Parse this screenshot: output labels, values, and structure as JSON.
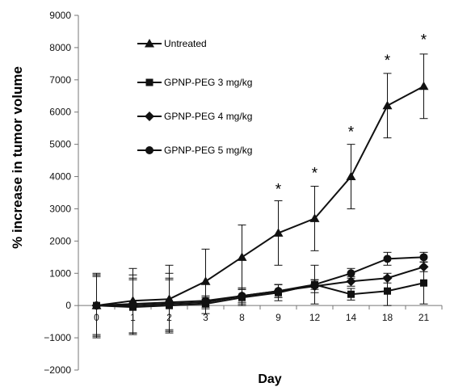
{
  "chart_data": {
    "type": "line",
    "xlabel": "Day",
    "ylabel": "% increase in tumor volume",
    "categories": [
      "0",
      "1",
      "2",
      "3",
      "8",
      "9",
      "12",
      "14",
      "18",
      "21"
    ],
    "ylim": [
      -2000,
      9000
    ],
    "yticks": [
      9000,
      8000,
      7000,
      6000,
      5000,
      4000,
      3000,
      2000,
      1000,
      0,
      -1000,
      -2000
    ],
    "ytick_labels": [
      "9000",
      "8000",
      "7000",
      "6000",
      "5000",
      "4000",
      "3000",
      "2000",
      "1000",
      "0",
      "−1000",
      "−2000"
    ],
    "grid": false,
    "legend_position": "top-left",
    "series": [
      {
        "name": "Untreated",
        "marker": "triangle",
        "values": [
          0,
          150,
          200,
          750,
          1500,
          2250,
          2700,
          4000,
          6200,
          6800
        ],
        "errors": [
          1000,
          1000,
          1050,
          1000,
          1000,
          1000,
          1000,
          1000,
          1000,
          1000
        ]
      },
      {
        "name": "GPNP-PEG 3 mg/kg",
        "marker": "square",
        "values": [
          0,
          -50,
          0,
          50,
          250,
          400,
          650,
          350,
          450,
          700
        ],
        "errors": [
          950,
          850,
          800,
          150,
          250,
          250,
          600,
          180,
          450,
          650
        ]
      },
      {
        "name": "GPNP-PEG 4 mg/kg",
        "marker": "diamond",
        "values": [
          0,
          0,
          50,
          100,
          300,
          450,
          600,
          750,
          850,
          1200
        ],
        "errors": [
          900,
          850,
          800,
          150,
          250,
          200,
          200,
          150,
          150,
          150
        ]
      },
      {
        "name": "GPNP-PEG 5 mg/kg",
        "marker": "circle",
        "values": [
          0,
          50,
          100,
          150,
          300,
          450,
          650,
          1000,
          1450,
          1500
        ],
        "errors": [
          950,
          900,
          900,
          150,
          200,
          200,
          150,
          150,
          200,
          150
        ]
      }
    ],
    "annotations": [
      {
        "text": "*",
        "x": "9",
        "y": 3650
      },
      {
        "text": "*",
        "x": "12",
        "y": 4150
      },
      {
        "text": "*",
        "x": "14",
        "y": 5430
      },
      {
        "text": "*",
        "x": "18",
        "y": 7650
      },
      {
        "text": "*",
        "x": "21",
        "y": 8280
      }
    ]
  }
}
